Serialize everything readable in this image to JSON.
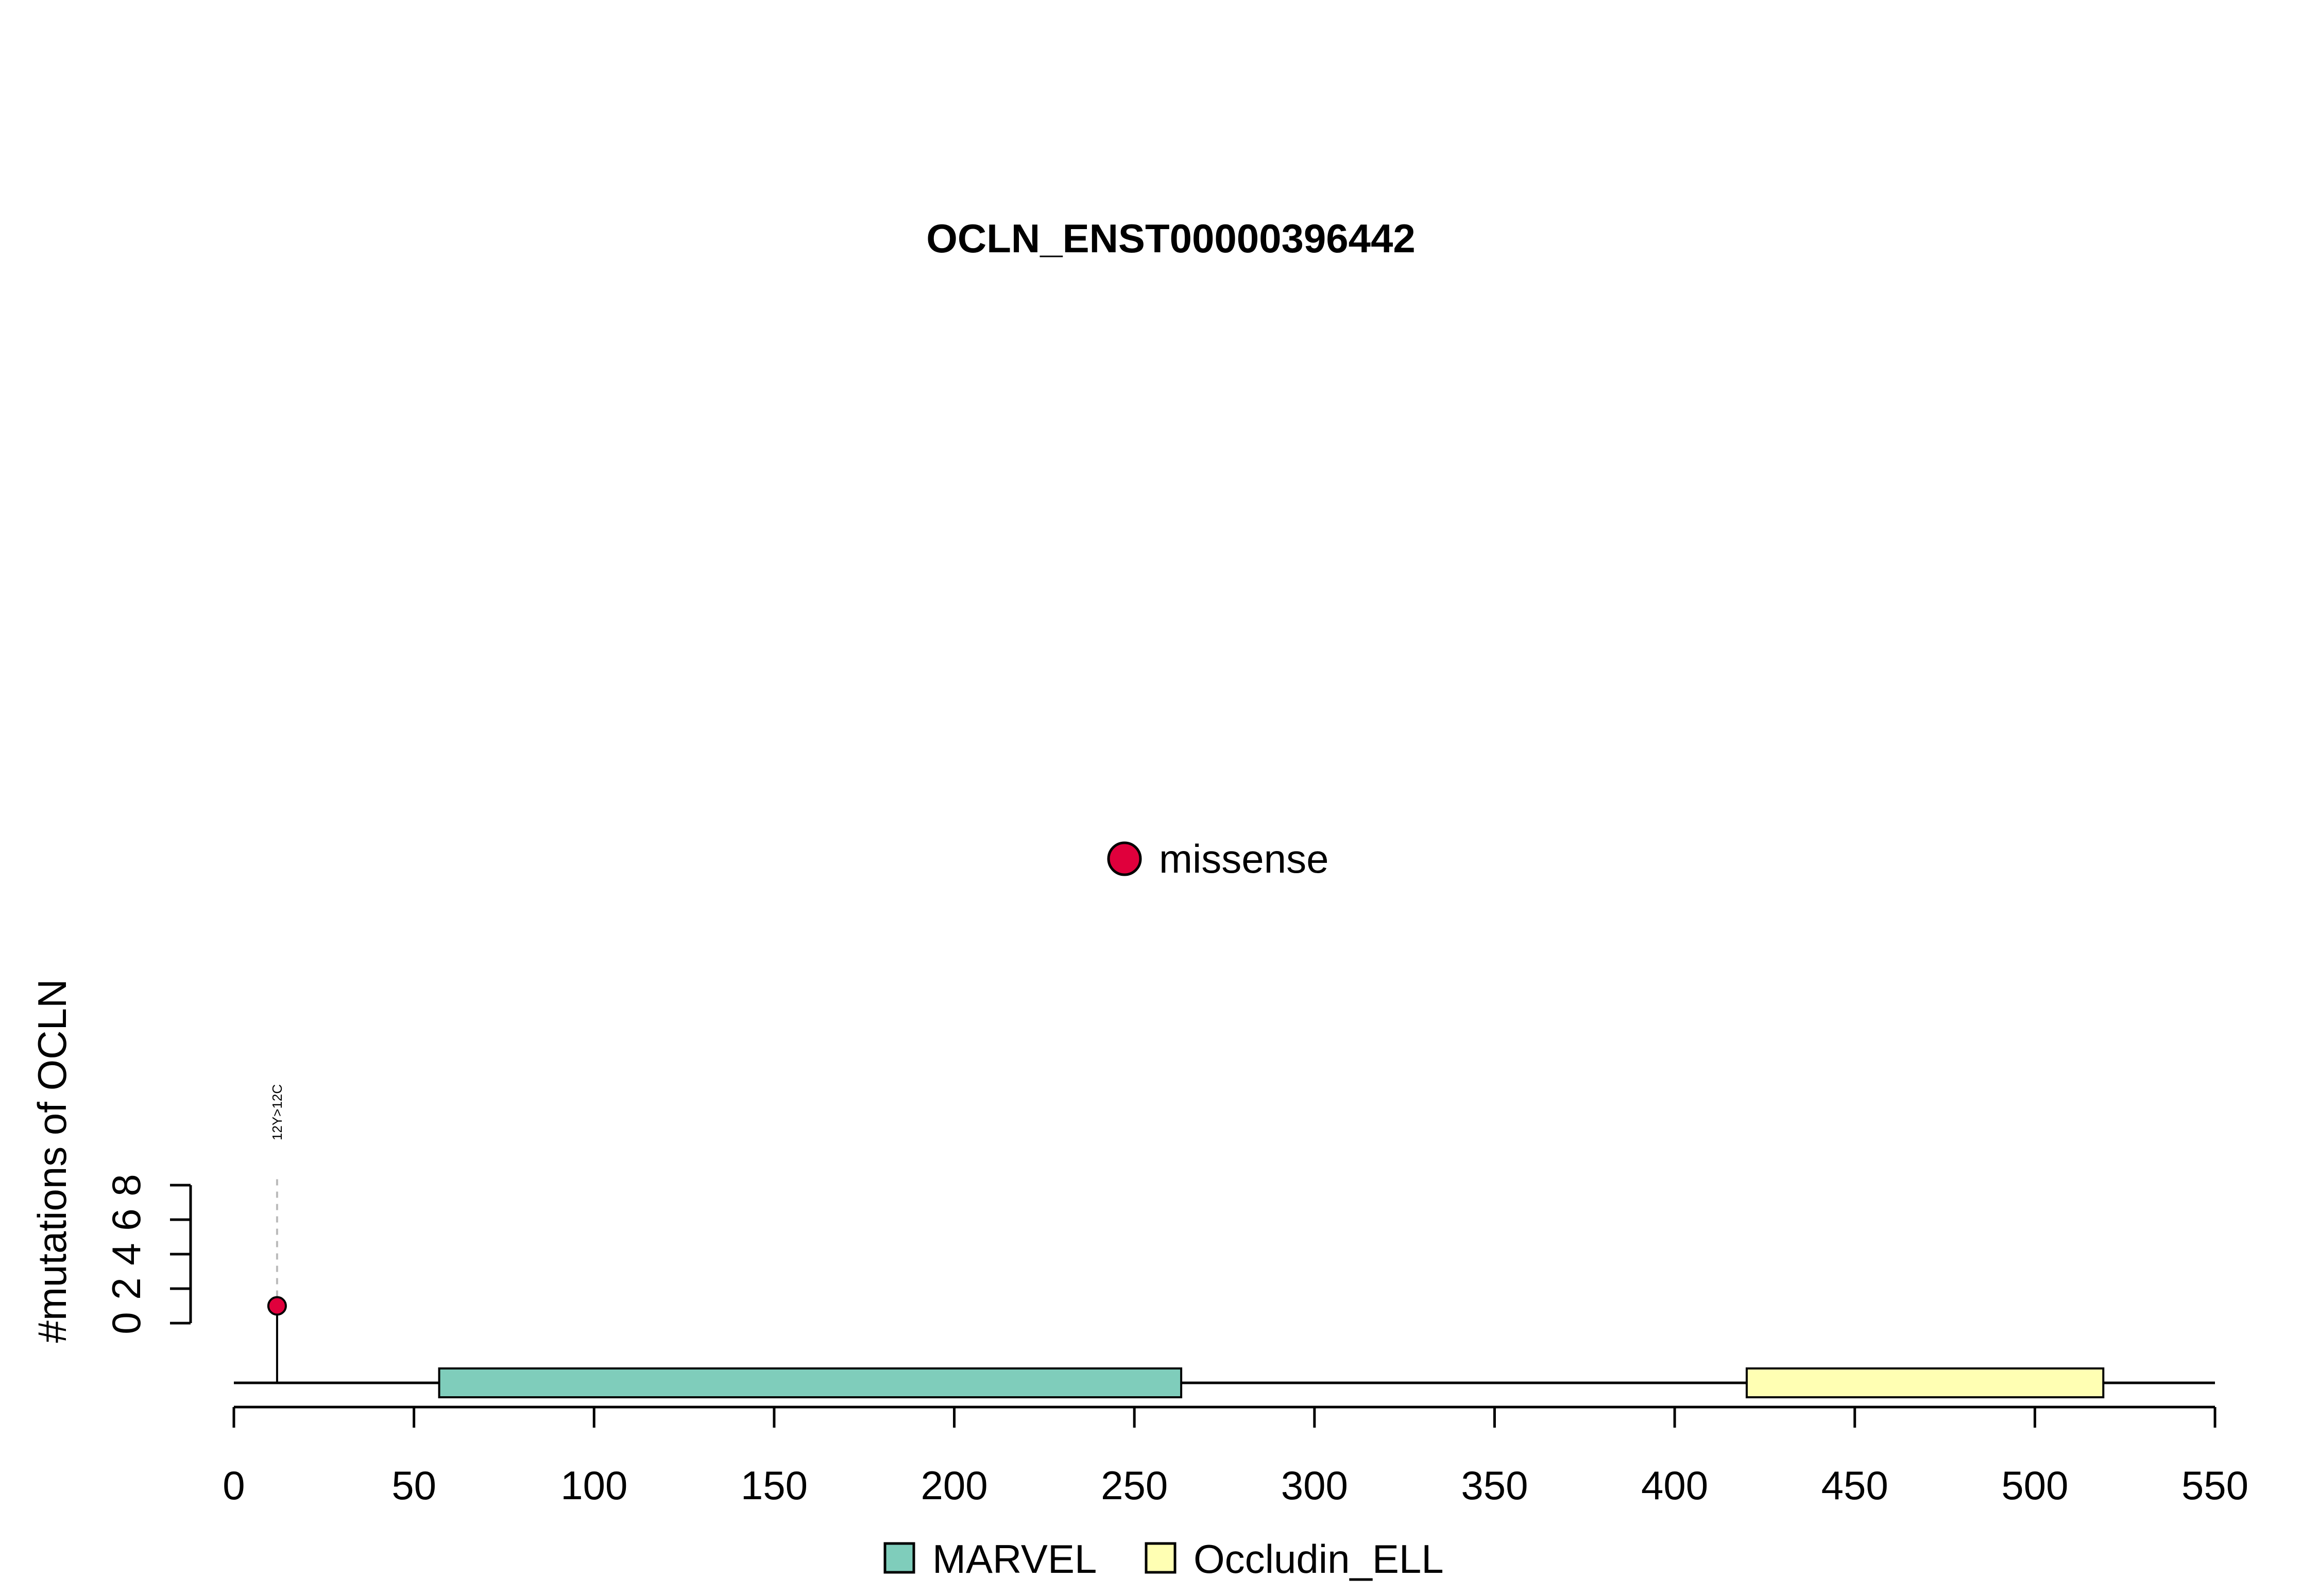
{
  "chart_data": {
    "type": "lollipop",
    "title": "OCLN_ENST00000396442",
    "ylabel": "#mutations of OCLN",
    "xlim": [
      0,
      550
    ],
    "x_ticks": [
      0,
      50,
      100,
      150,
      200,
      250,
      300,
      350,
      400,
      450,
      500,
      550
    ],
    "ylim": [
      0,
      8
    ],
    "y_ticks": [
      0,
      2,
      4,
      6,
      8
    ],
    "protein_length": 550,
    "domains": [
      {
        "name": "MARVEL",
        "start": 57,
        "end": 263,
        "color": "#7fcdbb"
      },
      {
        "name": "Occludin_ELL",
        "start": 420,
        "end": 519,
        "color": "#ffffb3"
      }
    ],
    "mutations": [
      {
        "position": 12,
        "label": "12Y>12C",
        "count": 1,
        "type": "missense",
        "color": "#e0003c"
      }
    ],
    "mutation_legend": [
      {
        "label": "missense",
        "color": "#e0003c"
      }
    ],
    "domain_legend": [
      {
        "label": "MARVEL",
        "color": "#7fcdbb"
      },
      {
        "label": "Occludin_ELL",
        "color": "#ffffb3"
      }
    ]
  }
}
